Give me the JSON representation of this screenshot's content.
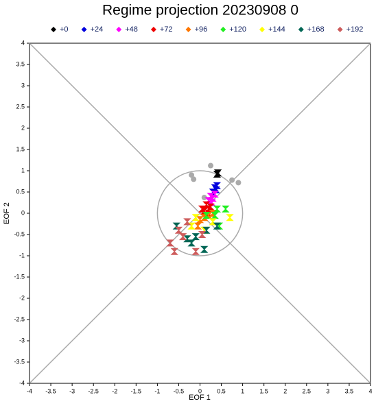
{
  "chart_data": {
    "type": "scatter",
    "title": "Regime projection 20230908 0",
    "xlabel": "EOF 1",
    "ylabel": "EOF 2",
    "xlim": [
      -4,
      4
    ],
    "ylim": [
      -4,
      4
    ],
    "xticks": [
      -4,
      -3.5,
      -3,
      -2.5,
      -2,
      -1.5,
      -1,
      -0.5,
      0,
      0.5,
      1,
      1.5,
      2,
      2.5,
      3,
      3.5,
      4
    ],
    "yticks": [
      -4,
      -3.5,
      -3,
      -2.5,
      -2,
      -1.5,
      -1,
      -0.5,
      0,
      0.5,
      1,
      1.5,
      2,
      2.5,
      3,
      3.5,
      4
    ],
    "series": [
      {
        "color": "#aaaaaa",
        "x": [
          0.25,
          -0.2,
          -0.15,
          0.75,
          0.9,
          0.1,
          0.4
        ],
        "y": [
          1.12,
          0.9,
          0.8,
          0.78,
          0.72,
          0.37,
          0.95
        ]
      },
      {
        "name": "+0",
        "color": "#000000",
        "x": [
          0.42,
          0.4
        ],
        "y": [
          0.95,
          0.92
        ]
      },
      {
        "name": "+24",
        "color": "#0000dd",
        "x": [
          0.35,
          0.4,
          0.3,
          0.38
        ],
        "y": [
          0.6,
          0.65,
          0.5,
          0.55
        ]
      },
      {
        "name": "+48",
        "color": "#ff00ff",
        "x": [
          0.25,
          0.3,
          0.2,
          0.35,
          0.28
        ],
        "y": [
          0.4,
          0.35,
          0.3,
          0.45,
          0.25
        ]
      },
      {
        "name": "+72",
        "color": "#ee0000",
        "x": [
          0.15,
          0.2,
          0.1,
          0.25,
          0.05,
          0.2
        ],
        "y": [
          0.2,
          0.1,
          0.05,
          0.15,
          0.1,
          0.0
        ]
      },
      {
        "name": "+96",
        "color": "#ff7700",
        "x": [
          0.1,
          0.2,
          0.0,
          0.3,
          -0.05
        ],
        "y": [
          -0.1,
          -0.05,
          -0.15,
          0.0,
          -0.3
        ]
      },
      {
        "name": "+120",
        "color": "#22ee22",
        "x": [
          0.4,
          0.6,
          0.35,
          0.15,
          0.45
        ],
        "y": [
          0.1,
          0.1,
          -0.05,
          -0.05,
          -0.3
        ]
      },
      {
        "name": "+144",
        "color": "#ffff00",
        "x": [
          0.7,
          0.3,
          -0.2,
          0.1,
          -0.1
        ],
        "y": [
          -0.1,
          -0.2,
          -0.3,
          -0.4,
          -0.1
        ]
      },
      {
        "name": "+168",
        "color": "#006655",
        "x": [
          -0.55,
          -0.3,
          0.15,
          -0.1,
          0.1,
          -0.2,
          0.4
        ],
        "y": [
          -0.3,
          -0.6,
          -0.4,
          -0.55,
          -0.85,
          -0.7,
          -0.3
        ]
      },
      {
        "name": "+192",
        "color": "#cd5c5c",
        "x": [
          -0.7,
          -0.6,
          -0.1,
          -0.5,
          -0.4,
          0.05,
          -0.3
        ],
        "y": [
          -0.7,
          -0.9,
          -0.9,
          -0.4,
          -0.55,
          -0.5,
          -0.2
        ]
      }
    ]
  }
}
